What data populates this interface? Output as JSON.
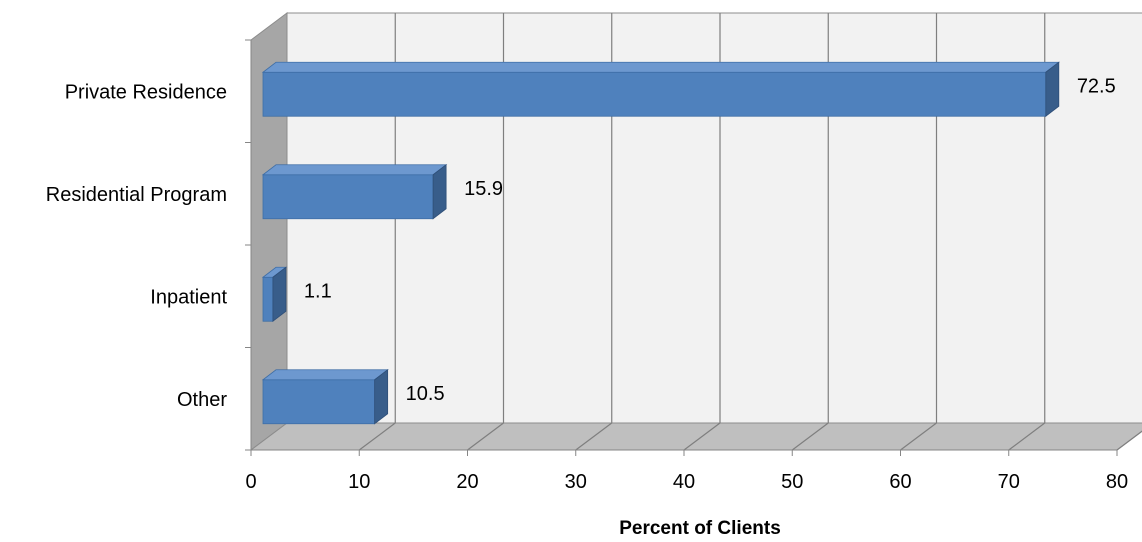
{
  "chart_data": {
    "type": "bar",
    "orientation": "horizontal",
    "style": "3d",
    "categories": [
      "Private Residence",
      "Residential Program",
      "Inpatient",
      "Other"
    ],
    "values": [
      72.5,
      15.9,
      1.1,
      10.5
    ],
    "data_labels": [
      "72.5",
      "15.9",
      "1.1",
      "10.5"
    ],
    "x_ticks": [
      "0",
      "10",
      "20",
      "30",
      "40",
      "50",
      "60",
      "70",
      "80"
    ],
    "xlabel": "Percent of Clients",
    "xlim": [
      0,
      80
    ],
    "grid": true,
    "bar_color": "#4F81BD",
    "bar_top_color": "#6D98CF",
    "bar_side_color": "#385D8A",
    "wall_color": "#F2F2F2",
    "side_wall_color": "#A6A6A6",
    "floor_color": "#BFBFBF"
  }
}
